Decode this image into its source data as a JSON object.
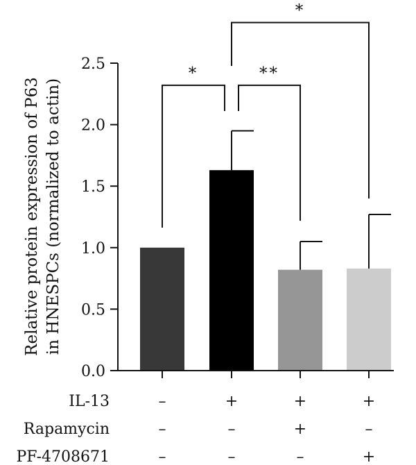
{
  "chart_data": {
    "type": "bar",
    "ylabel_line1": "Relative protein expression of P63",
    "ylabel_line2": "in HNESPCs (normalized to actin)",
    "ylim": [
      0,
      2.5
    ],
    "yticks": [
      "0.0",
      "0.5",
      "1.0",
      "1.5",
      "2.0",
      "2.5"
    ],
    "grid": false,
    "bars": [
      {
        "value": 1.0,
        "error": 0.0,
        "color": "#383838"
      },
      {
        "value": 1.63,
        "error": 0.32,
        "color": "#000000"
      },
      {
        "value": 0.82,
        "error": 0.23,
        "color": "#969696"
      },
      {
        "value": 0.83,
        "error": 0.44,
        "color": "#cccccc"
      }
    ],
    "treatments": [
      {
        "label": "IL-13",
        "signs": [
          "–",
          "+",
          "+",
          "+"
        ]
      },
      {
        "label": "Rapamycin",
        "signs": [
          "–",
          "–",
          "+",
          "–"
        ]
      },
      {
        "label": "PF-4708671",
        "signs": [
          "–",
          "–",
          "–",
          "+"
        ]
      }
    ],
    "significance": [
      {
        "from": 0,
        "to": 1,
        "label": "*",
        "level": 2.32
      },
      {
        "from": 1,
        "to": 2,
        "label": "**",
        "level": 2.32
      },
      {
        "from": 1,
        "to": 3,
        "label": "*",
        "level": 2.83
      }
    ]
  }
}
